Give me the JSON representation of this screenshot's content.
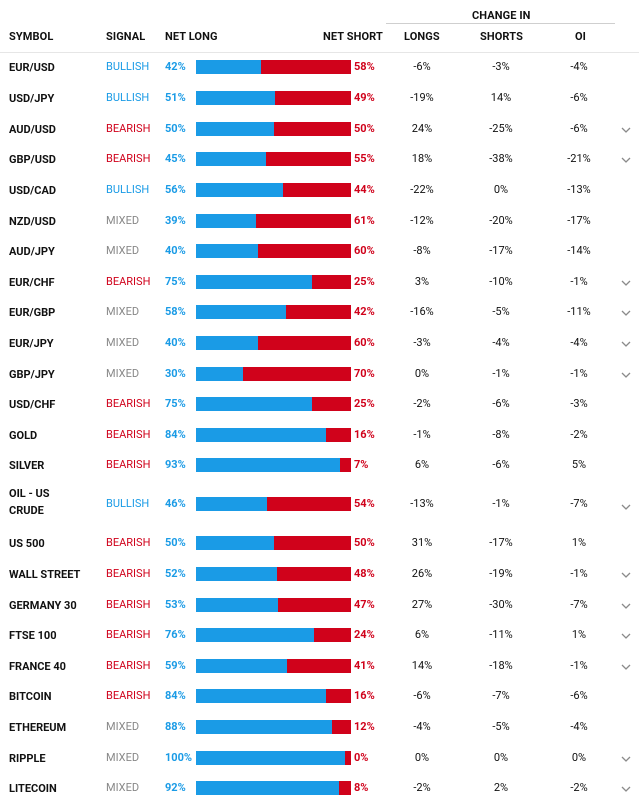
{
  "header": {
    "symbol": "SYMBOL",
    "signal": "SIGNAL",
    "net_long": "NET LONG",
    "net_short": "NET SHORT",
    "change_in": "CHANGE IN",
    "longs": "LONGS",
    "shorts": "SHORTS",
    "oi": "OI"
  },
  "colors": {
    "long": "#1a9be6",
    "short": "#d0021b",
    "bullish": "#1a9be6",
    "bearish": "#d0021b",
    "mixed": "#888888"
  },
  "rows": [
    {
      "symbol": "EUR/USD",
      "signal": "BULLISH",
      "net_long": "42%",
      "net_short": "58%",
      "longs": "-6%",
      "shorts": "-3%",
      "oi": "-4%",
      "expand": false
    },
    {
      "symbol": "USD/JPY",
      "signal": "BULLISH",
      "net_long": "51%",
      "net_short": "49%",
      "longs": "-19%",
      "shorts": "14%",
      "oi": "-6%",
      "expand": false
    },
    {
      "symbol": "AUD/USD",
      "signal": "BEARISH",
      "net_long": "50%",
      "net_short": "50%",
      "longs": "24%",
      "shorts": "-25%",
      "oi": "-6%",
      "expand": true
    },
    {
      "symbol": "GBP/USD",
      "signal": "BEARISH",
      "net_long": "45%",
      "net_short": "55%",
      "longs": "18%",
      "shorts": "-38%",
      "oi": "-21%",
      "expand": true
    },
    {
      "symbol": "USD/CAD",
      "signal": "BULLISH",
      "net_long": "56%",
      "net_short": "44%",
      "longs": "-22%",
      "shorts": "0%",
      "oi": "-13%",
      "expand": false
    },
    {
      "symbol": "NZD/USD",
      "signal": "MIXED",
      "net_long": "39%",
      "net_short": "61%",
      "longs": "-12%",
      "shorts": "-20%",
      "oi": "-17%",
      "expand": false
    },
    {
      "symbol": "AUD/JPY",
      "signal": "MIXED",
      "net_long": "40%",
      "net_short": "60%",
      "longs": "-8%",
      "shorts": "-17%",
      "oi": "-14%",
      "expand": false
    },
    {
      "symbol": "EUR/CHF",
      "signal": "BEARISH",
      "net_long": "75%",
      "net_short": "25%",
      "longs": "3%",
      "shorts": "-10%",
      "oi": "-1%",
      "expand": true
    },
    {
      "symbol": "EUR/GBP",
      "signal": "MIXED",
      "net_long": "58%",
      "net_short": "42%",
      "longs": "-16%",
      "shorts": "-5%",
      "oi": "-11%",
      "expand": true
    },
    {
      "symbol": "EUR/JPY",
      "signal": "MIXED",
      "net_long": "40%",
      "net_short": "60%",
      "longs": "-3%",
      "shorts": "-4%",
      "oi": "-4%",
      "expand": true
    },
    {
      "symbol": "GBP/JPY",
      "signal": "MIXED",
      "net_long": "30%",
      "net_short": "70%",
      "longs": "0%",
      "shorts": "-1%",
      "oi": "-1%",
      "expand": true
    },
    {
      "symbol": "USD/CHF",
      "signal": "BEARISH",
      "net_long": "75%",
      "net_short": "25%",
      "longs": "-2%",
      "shorts": "-6%",
      "oi": "-3%",
      "expand": false
    },
    {
      "symbol": "GOLD",
      "signal": "BEARISH",
      "net_long": "84%",
      "net_short": "16%",
      "longs": "-1%",
      "shorts": "-8%",
      "oi": "-2%",
      "expand": false
    },
    {
      "symbol": "SILVER",
      "signal": "BEARISH",
      "net_long": "93%",
      "net_short": "7%",
      "longs": "6%",
      "shorts": "-6%",
      "oi": "5%",
      "expand": false
    },
    {
      "symbol": "OIL - US CRUDE",
      "signal": "BULLISH",
      "net_long": "46%",
      "net_short": "54%",
      "longs": "-13%",
      "shorts": "-1%",
      "oi": "-7%",
      "expand": true
    },
    {
      "symbol": "US 500",
      "signal": "BEARISH",
      "net_long": "50%",
      "net_short": "50%",
      "longs": "31%",
      "shorts": "-17%",
      "oi": "1%",
      "expand": false
    },
    {
      "symbol": "WALL STREET",
      "signal": "BEARISH",
      "net_long": "52%",
      "net_short": "48%",
      "longs": "26%",
      "shorts": "-19%",
      "oi": "-1%",
      "expand": true
    },
    {
      "symbol": "GERMANY 30",
      "signal": "BEARISH",
      "net_long": "53%",
      "net_short": "47%",
      "longs": "27%",
      "shorts": "-30%",
      "oi": "-7%",
      "expand": true
    },
    {
      "symbol": "FTSE 100",
      "signal": "BEARISH",
      "net_long": "76%",
      "net_short": "24%",
      "longs": "6%",
      "shorts": "-11%",
      "oi": "1%",
      "expand": true
    },
    {
      "symbol": "FRANCE 40",
      "signal": "BEARISH",
      "net_long": "59%",
      "net_short": "41%",
      "longs": "14%",
      "shorts": "-18%",
      "oi": "-1%",
      "expand": true
    },
    {
      "symbol": "BITCOIN",
      "signal": "BEARISH",
      "net_long": "84%",
      "net_short": "16%",
      "longs": "-6%",
      "shorts": "-7%",
      "oi": "-6%",
      "expand": false
    },
    {
      "symbol": "ETHEREUM",
      "signal": "MIXED",
      "net_long": "88%",
      "net_short": "12%",
      "longs": "-4%",
      "shorts": "-5%",
      "oi": "-4%",
      "expand": false
    },
    {
      "symbol": "RIPPLE",
      "signal": "MIXED",
      "net_long": "100%",
      "net_short": "0%",
      "longs": "0%",
      "shorts": "0%",
      "oi": "0%",
      "expand": true
    },
    {
      "symbol": "LITECOIN",
      "signal": "MIXED",
      "net_long": "92%",
      "net_short": "8%",
      "longs": "-2%",
      "shorts": "2%",
      "oi": "-2%",
      "expand": true
    }
  ]
}
